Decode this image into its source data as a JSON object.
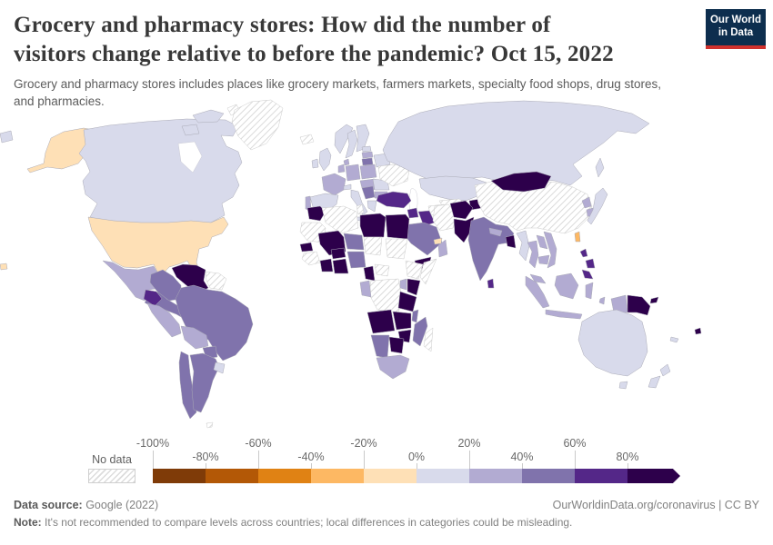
{
  "header": {
    "title_lines": [
      "Grocery and pharmacy stores: How did the number of",
      "visitors change relative to before the pandemic? Oct 15, 2022"
    ],
    "subtitle_lines": [
      "Grocery and pharmacy stores includes places like grocery markets, farmers markets, specialty food shops, drug stores,",
      "and pharmacies."
    ],
    "logo": {
      "line1": "Our World",
      "line2": "in Data",
      "bg": "#0d2e4e",
      "stripe": "#d0312d"
    }
  },
  "legend": {
    "no_data_label": "No data",
    "ticks": [
      "-100%",
      "-80%",
      "-60%",
      "-40%",
      "-20%",
      "0%",
      "20%",
      "40%",
      "60%",
      "80%"
    ]
  },
  "chart_data": {
    "type": "choropleth",
    "title": "Grocery and pharmacy stores: How did the number of visitors change relative to before the pandemic?",
    "date": "Oct 15, 2022",
    "unit": "% change in visitors relative to pre-pandemic baseline",
    "legend_position": "bottom",
    "buckets": [
      {
        "label": "-100% to -80%",
        "color": "#7f3b08"
      },
      {
        "label": "-80% to -60%",
        "color": "#b35806"
      },
      {
        "label": "-60% to -40%",
        "color": "#e08214"
      },
      {
        "label": "-40% to -20%",
        "color": "#fdb863"
      },
      {
        "label": "-20% to 0%",
        "color": "#fee0b6"
      },
      {
        "label": "0% to 20%",
        "color": "#d8daeb"
      },
      {
        "label": "20% to 40%",
        "color": "#b2abd2"
      },
      {
        "label": "40% to 60%",
        "color": "#8073ac"
      },
      {
        "label": "60% to 80%",
        "color": "#542788"
      },
      {
        "label": "80%+",
        "color": "#2d004b"
      },
      {
        "label": "No data",
        "color": "hatch"
      }
    ],
    "countries": {
      "United States": "-20% to 0%",
      "Canada": "0% to 20%",
      "Canada Arctic Islands": "0% to 20%",
      "Arctic Island": "No data",
      "Greenland": "No data",
      "Mexico": "20% to 40%",
      "Central America": "40% to 60%",
      "Cuba": "No data",
      "Haiti": "80%+",
      "Dominican Republic": "40% to 60%",
      "Jamaica": "-20% to 0%",
      "Puerto Rico": "40% to 60%",
      "Trinidad and Tobago": "80%+",
      "Venezuela": "80%+",
      "Colombia": "40% to 60%",
      "Guyana and Suriname": "No data",
      "Ecuador": "60% to 80%",
      "Peru": "20% to 40%",
      "Brazil": "40% to 60%",
      "Bolivia": "20% to 40%",
      "Paraguay": "40% to 60%",
      "Chile": "40% to 60%",
      "Argentina": "40% to 60%",
      "Uruguay": "0% to 20%",
      "Falkland Islands": "No data",
      "Iceland": "No data",
      "United Kingdom": "0% to 20%",
      "Ireland": "0% to 20%",
      "Norway": "0% to 20%",
      "Sweden": "0% to 20%",
      "Finland": "0% to 20%",
      "Denmark": "20% to 40%",
      "Estonia": "0% to 20%",
      "Latvia": "20% to 40%",
      "Lithuania": "40% to 60%",
      "Belarus": "0% to 20%",
      "Poland": "20% to 40%",
      "Germany": "20% to 40%",
      "Netherlands and Belgium": "20% to 40%",
      "France": "20% to 40%",
      "Switzerland": "0% to 20%",
      "Czechia Austria Hungary": "20% to 40%",
      "Spain": "0% to 20%",
      "Portugal": "20% to 40%",
      "Italy": "0% to 20%",
      "Croatia and Serbia": "40% to 60%",
      "Romania": "0% to 20%",
      "Bulgaria": "20% to 40%",
      "Greece": "0% to 20%",
      "Ukraine": "No data",
      "Russia": "0% to 20%",
      "Kazakhstan": "0% to 20%",
      "Uzbekistan": "No data",
      "Turkmenistan": "No data",
      "Tajikistan": "80%+",
      "Turkey": "60% to 80%",
      "Syria": "60% to 80%",
      "Israel and Jordan": "40% to 60%",
      "Iraq": "60% to 80%",
      "Iran": "No data",
      "Afghanistan": "80%+",
      "Pakistan": "80%+",
      "India": "40% to 60%",
      "Nepal": "20% to 40%",
      "Bangladesh": "80%+",
      "Sri Lanka": "60% to 80%",
      "Saudi Arabia": "40% to 60%",
      "Yemen": "80%+",
      "Oman": "20% to 40%",
      "United Arab Emirates": "-20% to 0%",
      "China": "No data",
      "Mongolia": "80%+",
      "North Korea": "20% to 40%",
      "South Korea": "20% to 40%",
      "Japan": "0% to 20%",
      "Taiwan": "-40% to -20%",
      "Myanmar": "0% to 20%",
      "Thailand": "20% to 40%",
      "Laos": "20% to 40%",
      "Cambodia": "20% to 40%",
      "Vietnam": "20% to 40%",
      "Philippines": "60% to 80%",
      "Malaysia": "20% to 40%",
      "Indonesia": "20% to 40%",
      "West Papua (Indonesia)": "20% to 40%",
      "Papua New Guinea": "80%+",
      "Fiji": "80%+",
      "New Caledonia": "0% to 20%",
      "Australia": "0% to 20%",
      "New Zealand": "0% to 20%",
      "Morocco": "80%+",
      "Algeria": "No data",
      "Tunisia": "No data",
      "Libya": "80%+",
      "Egypt": "80%+",
      "Mauritania": "No data",
      "Mali": "80%+",
      "Senegal": "80%+",
      "Guinea": "No data",
      "Cote d'Ivoire": "80%+",
      "Burkina Faso": "80%+",
      "Ghana Togo Benin": "80%+",
      "Niger": "40% to 60%",
      "Chad": "No data",
      "Sudan": "No data",
      "Nigeria": "40% to 60%",
      "Cameroon": "80%+",
      "Central African Republic": "No data",
      "Ethiopia": "No data",
      "Somalia": "No data",
      "Kenya": "80%+",
      "Uganda": "20% to 40%",
      "DR Congo": "No data",
      "Gabon": "20% to 40%",
      "Tanzania": "80%+",
      "Angola": "80%+",
      "Zambia": "80%+",
      "Malawi": "40% to 60%",
      "Mozambique": "40% to 60%",
      "Zimbabwe": "80%+",
      "Botswana": "80%+",
      "Namibia": "40% to 60%",
      "South Africa": "20% to 40%",
      "Madagascar": "No data"
    }
  },
  "footer": {
    "source_label": "Data source:",
    "source_value": " Google (2022)",
    "link": "OurWorldinData.org/coronavirus | CC BY",
    "note_label": "Note:",
    "note_value": " It's not recommended to compare levels across countries; local differences in categories could be misleading."
  }
}
